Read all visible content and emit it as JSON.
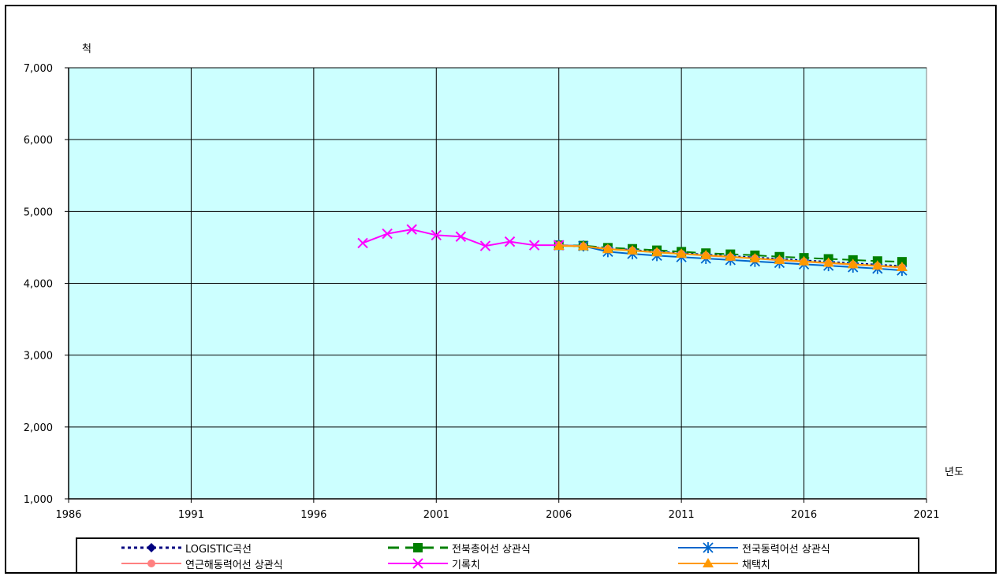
{
  "chart_data": {
    "type": "line",
    "x_unit_label": "년도",
    "y_unit_label": "척",
    "xlim": [
      1986,
      2021
    ],
    "ylim": [
      1000,
      7000
    ],
    "x_ticks": [
      "1986",
      "1991",
      "1996",
      "2001",
      "2006",
      "2011",
      "2016",
      "2021"
    ],
    "y_ticks": [
      "1,000",
      "2,000",
      "3,000",
      "4,000",
      "5,000",
      "6,000",
      "7,000"
    ],
    "grid": true,
    "plot_background": "#ccffff",
    "legend_position": "bottom",
    "series": [
      {
        "name": "LOGISTIC곡선",
        "color": "#000080",
        "line_style": "dotted",
        "marker": "diamond",
        "x": [
          2006,
          2007,
          2008,
          2009,
          2010,
          2011,
          2012,
          2013,
          2014,
          2015,
          2016,
          2017,
          2018,
          2019,
          2020
        ],
        "values": [
          4530,
          4510,
          4490,
          4465,
          4440,
          4420,
          4400,
          4380,
          4360,
          4340,
          4320,
          4300,
          4280,
          4260,
          4240
        ]
      },
      {
        "name": "전북총어선 상관식",
        "color": "#008000",
        "line_style": "dashed",
        "marker": "square",
        "x": [
          2006,
          2007,
          2008,
          2009,
          2010,
          2011,
          2012,
          2013,
          2014,
          2015,
          2016,
          2017,
          2018,
          2019,
          2020
        ],
        "values": [
          4530,
          4525,
          4495,
          4480,
          4460,
          4440,
          4420,
          4405,
          4390,
          4370,
          4355,
          4340,
          4325,
          4310,
          4300
        ]
      },
      {
        "name": "전국동력어선 상관식",
        "color": "#0066cc",
        "line_style": "solid",
        "marker": "asterisk",
        "x": [
          2006,
          2007,
          2008,
          2009,
          2010,
          2011,
          2012,
          2013,
          2014,
          2015,
          2016,
          2017,
          2018,
          2019,
          2020
        ],
        "values": [
          4530,
          4520,
          4440,
          4410,
          4385,
          4365,
          4345,
          4325,
          4305,
          4285,
          4265,
          4245,
          4225,
          4205,
          4180
        ]
      },
      {
        "name": "연근해동력어선 상관식",
        "color": "#ff8080",
        "line_style": "solid",
        "marker": "circle",
        "x": [
          2006,
          2007,
          2008,
          2009,
          2010,
          2011,
          2012,
          2013,
          2014,
          2015,
          2016,
          2017,
          2018,
          2019,
          2020
        ],
        "values": [
          4530,
          4515,
          4480,
          4455,
          4430,
          4410,
          4385,
          4365,
          4345,
          4320,
          4300,
          4280,
          4260,
          4240,
          4220
        ]
      },
      {
        "name": "기록치",
        "color": "#ff00ff",
        "line_style": "solid",
        "marker": "x",
        "x": [
          1998,
          1999,
          2000,
          2001,
          2002,
          2003,
          2004,
          2005,
          2006
        ],
        "values": [
          4560,
          4690,
          4750,
          4670,
          4650,
          4520,
          4580,
          4530,
          4530
        ]
      },
      {
        "name": "채택치",
        "color": "#ff9900",
        "line_style": "solid",
        "marker": "triangle",
        "x": [
          2006,
          2007,
          2008,
          2009,
          2010,
          2011,
          2012,
          2013,
          2014,
          2015,
          2016,
          2017,
          2018,
          2019,
          2020
        ],
        "values": [
          4520,
          4515,
          4475,
          4455,
          4430,
          4410,
          4390,
          4370,
          4345,
          4325,
          4305,
          4285,
          4265,
          4245,
          4225
        ]
      }
    ]
  }
}
